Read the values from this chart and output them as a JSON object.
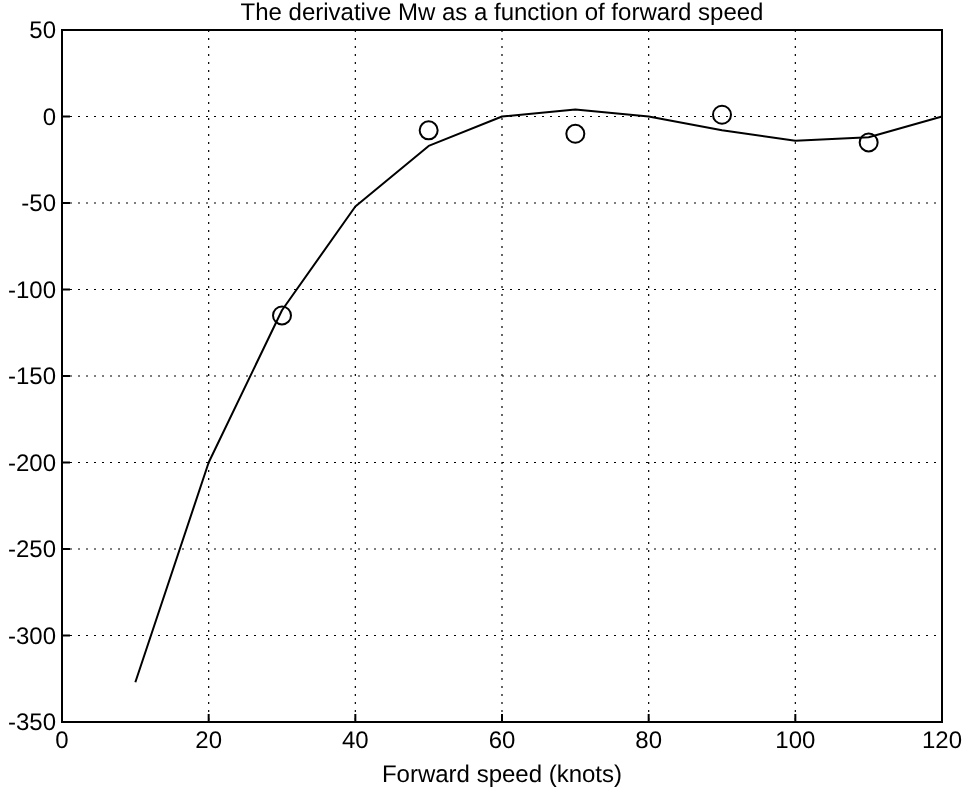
{
  "chart_data": {
    "type": "line",
    "title": "The derivative Mw as a function of forward speed",
    "xlabel": "Forward speed (knots)",
    "xlim": [
      0,
      120
    ],
    "xticks": [
      0,
      20,
      40,
      60,
      80,
      100,
      120
    ],
    "ylim": [
      -350,
      50
    ],
    "yticks": [
      50,
      0,
      -50,
      -100,
      -150,
      -200,
      -250,
      -300,
      -350
    ],
    "grid": true,
    "series": [
      {
        "color": "#000000",
        "marker": "none",
        "x": [
          10,
          20,
          30,
          40,
          50,
          60,
          70,
          80,
          90,
          100,
          110,
          120
        ],
        "values": [
          -327,
          -200,
          -112,
          -52,
          -17,
          0,
          4,
          0,
          -8,
          -14,
          -12,
          0
        ]
      },
      {
        "type": "scatter",
        "color": "#000000",
        "marker": "circle",
        "x": [
          30,
          50,
          70,
          90,
          110
        ],
        "values": [
          -115,
          -8,
          -10,
          1,
          -15
        ]
      }
    ]
  }
}
